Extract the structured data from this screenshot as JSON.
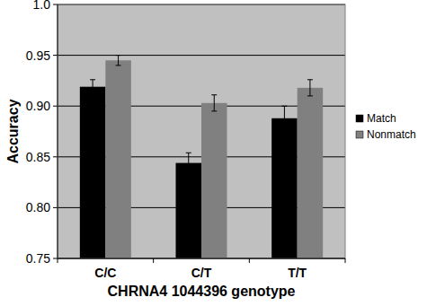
{
  "chart_data": {
    "type": "bar",
    "x_label": "CHRNA4 1044396 genotype",
    "y_label": "Accuracy",
    "categories": [
      "C/C",
      "C/T",
      "T/T"
    ],
    "series": [
      {
        "name": "Match",
        "color": "#000000",
        "values": [
          0.919,
          0.844,
          0.888
        ],
        "errors": [
          0.007,
          0.01,
          0.012
        ]
      },
      {
        "name": "Nonmatch",
        "color": "#808080",
        "values": [
          0.945,
          0.903,
          0.918
        ],
        "errors": [
          0.005,
          0.008,
          0.008
        ]
      }
    ],
    "ylim": [
      0.75,
      1.0
    ],
    "yticks": [
      0.75,
      {
        "value": 0.8,
        "label": "0.80"
      },
      0.85,
      {
        "value": 0.9,
        "label": "0.90"
      },
      0.95,
      {
        "value": 1.0,
        "label": "1.0"
      }
    ],
    "grid": true,
    "legend": "right"
  }
}
